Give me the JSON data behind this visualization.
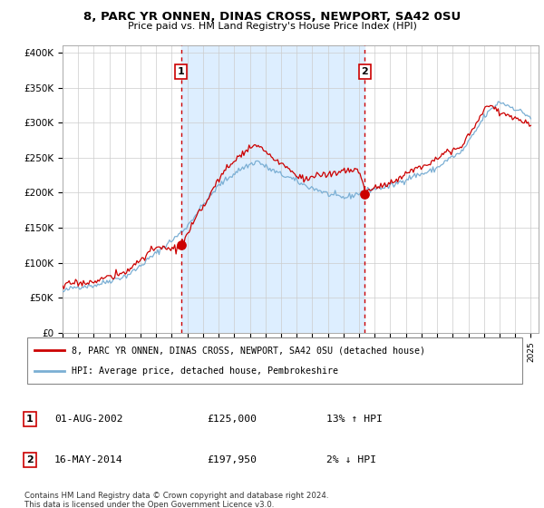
{
  "title": "8, PARC YR ONNEN, DINAS CROSS, NEWPORT, SA42 0SU",
  "subtitle": "Price paid vs. HM Land Registry's House Price Index (HPI)",
  "ylabel_ticks": [
    0,
    50000,
    100000,
    150000,
    200000,
    250000,
    300000,
    350000,
    400000
  ],
  "ylabel_labels": [
    "£0",
    "£50K",
    "£100K",
    "£150K",
    "£200K",
    "£250K",
    "£300K",
    "£350K",
    "£400K"
  ],
  "xlim": [
    1995.0,
    2025.5
  ],
  "ylim": [
    0,
    410000
  ],
  "sale1_x": 2002.583,
  "sale1_y": 125000,
  "sale1_label": "1",
  "sale2_x": 2014.37,
  "sale2_y": 197950,
  "sale2_label": "2",
  "legend_line1": "8, PARC YR ONNEN, DINAS CROSS, NEWPORT, SA42 0SU (detached house)",
  "legend_line2": "HPI: Average price, detached house, Pembrokeshire",
  "footnote": "Contains HM Land Registry data © Crown copyright and database right 2024.\nThis data is licensed under the Open Government Licence v3.0.",
  "line_color_red": "#cc0000",
  "line_color_blue": "#7bafd4",
  "shade_color": "#ddeeff",
  "background_color": "#ffffff",
  "grid_color": "#cccccc"
}
